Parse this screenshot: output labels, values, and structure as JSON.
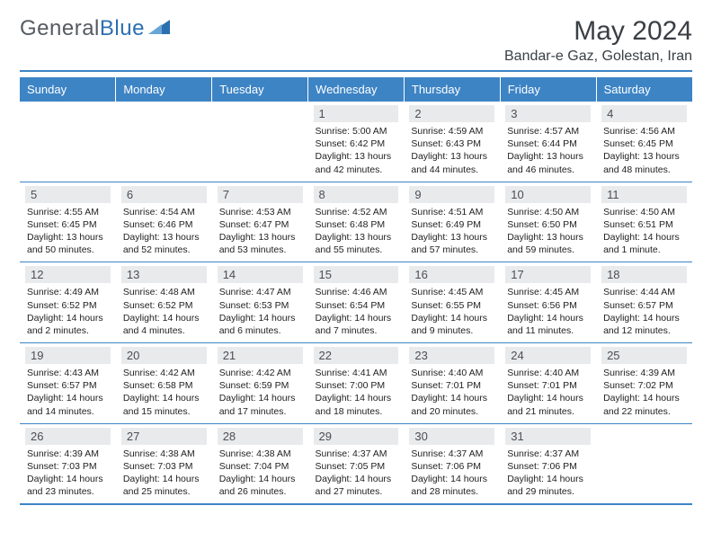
{
  "brand": {
    "name_a": "General",
    "name_b": "Blue"
  },
  "title": "May 2024",
  "location": "Bandar-e Gaz, Golestan, Iran",
  "weekdays": [
    "Sunday",
    "Monday",
    "Tuesday",
    "Wednesday",
    "Thursday",
    "Friday",
    "Saturday"
  ],
  "colors": {
    "header_bg": "#3d84c5",
    "header_text": "#ffffff",
    "daynum_bg": "#e9eaec",
    "border": "#3d84c5",
    "brand_gray": "#555b61",
    "brand_blue": "#2c6fb0"
  },
  "weeks": [
    [
      {
        "empty": true
      },
      {
        "empty": true
      },
      {
        "empty": true
      },
      {
        "n": "1",
        "rise": "5:00 AM",
        "set": "6:42 PM",
        "daylen": "13 hours and 42 minutes."
      },
      {
        "n": "2",
        "rise": "4:59 AM",
        "set": "6:43 PM",
        "daylen": "13 hours and 44 minutes."
      },
      {
        "n": "3",
        "rise": "4:57 AM",
        "set": "6:44 PM",
        "daylen": "13 hours and 46 minutes."
      },
      {
        "n": "4",
        "rise": "4:56 AM",
        "set": "6:45 PM",
        "daylen": "13 hours and 48 minutes."
      }
    ],
    [
      {
        "n": "5",
        "rise": "4:55 AM",
        "set": "6:45 PM",
        "daylen": "13 hours and 50 minutes."
      },
      {
        "n": "6",
        "rise": "4:54 AM",
        "set": "6:46 PM",
        "daylen": "13 hours and 52 minutes."
      },
      {
        "n": "7",
        "rise": "4:53 AM",
        "set": "6:47 PM",
        "daylen": "13 hours and 53 minutes."
      },
      {
        "n": "8",
        "rise": "4:52 AM",
        "set": "6:48 PM",
        "daylen": "13 hours and 55 minutes."
      },
      {
        "n": "9",
        "rise": "4:51 AM",
        "set": "6:49 PM",
        "daylen": "13 hours and 57 minutes."
      },
      {
        "n": "10",
        "rise": "4:50 AM",
        "set": "6:50 PM",
        "daylen": "13 hours and 59 minutes."
      },
      {
        "n": "11",
        "rise": "4:50 AM",
        "set": "6:51 PM",
        "daylen": "14 hours and 1 minute."
      }
    ],
    [
      {
        "n": "12",
        "rise": "4:49 AM",
        "set": "6:52 PM",
        "daylen": "14 hours and 2 minutes."
      },
      {
        "n": "13",
        "rise": "4:48 AM",
        "set": "6:52 PM",
        "daylen": "14 hours and 4 minutes."
      },
      {
        "n": "14",
        "rise": "4:47 AM",
        "set": "6:53 PM",
        "daylen": "14 hours and 6 minutes."
      },
      {
        "n": "15",
        "rise": "4:46 AM",
        "set": "6:54 PM",
        "daylen": "14 hours and 7 minutes."
      },
      {
        "n": "16",
        "rise": "4:45 AM",
        "set": "6:55 PM",
        "daylen": "14 hours and 9 minutes."
      },
      {
        "n": "17",
        "rise": "4:45 AM",
        "set": "6:56 PM",
        "daylen": "14 hours and 11 minutes."
      },
      {
        "n": "18",
        "rise": "4:44 AM",
        "set": "6:57 PM",
        "daylen": "14 hours and 12 minutes."
      }
    ],
    [
      {
        "n": "19",
        "rise": "4:43 AM",
        "set": "6:57 PM",
        "daylen": "14 hours and 14 minutes."
      },
      {
        "n": "20",
        "rise": "4:42 AM",
        "set": "6:58 PM",
        "daylen": "14 hours and 15 minutes."
      },
      {
        "n": "21",
        "rise": "4:42 AM",
        "set": "6:59 PM",
        "daylen": "14 hours and 17 minutes."
      },
      {
        "n": "22",
        "rise": "4:41 AM",
        "set": "7:00 PM",
        "daylen": "14 hours and 18 minutes."
      },
      {
        "n": "23",
        "rise": "4:40 AM",
        "set": "7:01 PM",
        "daylen": "14 hours and 20 minutes."
      },
      {
        "n": "24",
        "rise": "4:40 AM",
        "set": "7:01 PM",
        "daylen": "14 hours and 21 minutes."
      },
      {
        "n": "25",
        "rise": "4:39 AM",
        "set": "7:02 PM",
        "daylen": "14 hours and 22 minutes."
      }
    ],
    [
      {
        "n": "26",
        "rise": "4:39 AM",
        "set": "7:03 PM",
        "daylen": "14 hours and 23 minutes."
      },
      {
        "n": "27",
        "rise": "4:38 AM",
        "set": "7:03 PM",
        "daylen": "14 hours and 25 minutes."
      },
      {
        "n": "28",
        "rise": "4:38 AM",
        "set": "7:04 PM",
        "daylen": "14 hours and 26 minutes."
      },
      {
        "n": "29",
        "rise": "4:37 AM",
        "set": "7:05 PM",
        "daylen": "14 hours and 27 minutes."
      },
      {
        "n": "30",
        "rise": "4:37 AM",
        "set": "7:06 PM",
        "daylen": "14 hours and 28 minutes."
      },
      {
        "n": "31",
        "rise": "4:37 AM",
        "set": "7:06 PM",
        "daylen": "14 hours and 29 minutes."
      },
      {
        "empty": true
      }
    ]
  ],
  "labels": {
    "sunrise": "Sunrise:",
    "sunset": "Sunset:",
    "daylight": "Daylight:"
  }
}
